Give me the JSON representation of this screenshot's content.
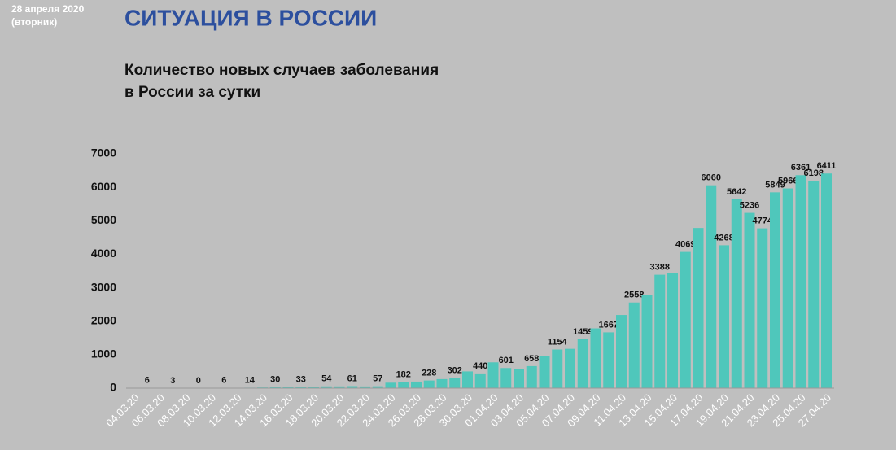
{
  "header": {
    "date": "28 апреля 2020",
    "weekday": "(вторник)",
    "title": "СИТУАЦИЯ В РОССИИ"
  },
  "chart_data": {
    "type": "bar",
    "title": [
      "Количество новых случаев заболевания",
      "в России за сутки"
    ],
    "color": "#4fc7bb",
    "categories": [
      "04.03.20",
      null,
      "06.03.20",
      null,
      "08.03.20",
      null,
      "10.03.20",
      null,
      "12.03.20",
      null,
      "14.03.20",
      null,
      "16.03.20",
      null,
      "18.03.20",
      null,
      "20.03.20",
      null,
      "22.03.20",
      null,
      "24.03.20",
      null,
      "26.03.20",
      null,
      "28.03.20",
      null,
      "30.03.20",
      null,
      "01.04.20",
      null,
      "03.04.20",
      null,
      "05.04.20",
      null,
      "07.04.20",
      null,
      "09.04.20",
      null,
      "11.04.20",
      null,
      "13.04.20",
      null,
      "15.04.20",
      null,
      "17.04.20",
      null,
      "19.04.20",
      null,
      "21.04.20",
      null,
      "23.04.20",
      null,
      "25.04.20",
      null,
      "27.04.20"
    ],
    "values": [
      2,
      6,
      4,
      3,
      1,
      0,
      3,
      6,
      10,
      14,
      20,
      30,
      30,
      33,
      44,
      54,
      53,
      61,
      52,
      57,
      163,
      182,
      196,
      228,
      270,
      302,
      500,
      440,
      771,
      601,
      582,
      658,
      954,
      1154,
      1175,
      1459,
      1786,
      1667,
      2186,
      2558,
      2774,
      3388,
      3448,
      4069,
      4785,
      6060,
      4268,
      5642,
      5236,
      4774,
      5849,
      5966,
      6361,
      6198,
      6411
    ],
    "value_labels": [
      null,
      "6",
      null,
      "3",
      null,
      "0",
      null,
      "6",
      null,
      "14",
      null,
      "30",
      null,
      "33",
      null,
      "54",
      null,
      "61",
      null,
      "57",
      null,
      "182",
      null,
      "228",
      null,
      "302",
      null,
      "440",
      null,
      "601",
      null,
      "658",
      null,
      "1154",
      null,
      "1459",
      null,
      "1667",
      null,
      "2558",
      null,
      "3388",
      null,
      "4069",
      null,
      "6060",
      "4268",
      "5642",
      "5236",
      "4774",
      "5849",
      "5966",
      "6361",
      "6198",
      "6411"
    ],
    "ylim": [
      0,
      7000
    ],
    "yticks": [
      0,
      1000,
      2000,
      3000,
      4000,
      5000,
      6000,
      7000
    ],
    "grid": false
  }
}
